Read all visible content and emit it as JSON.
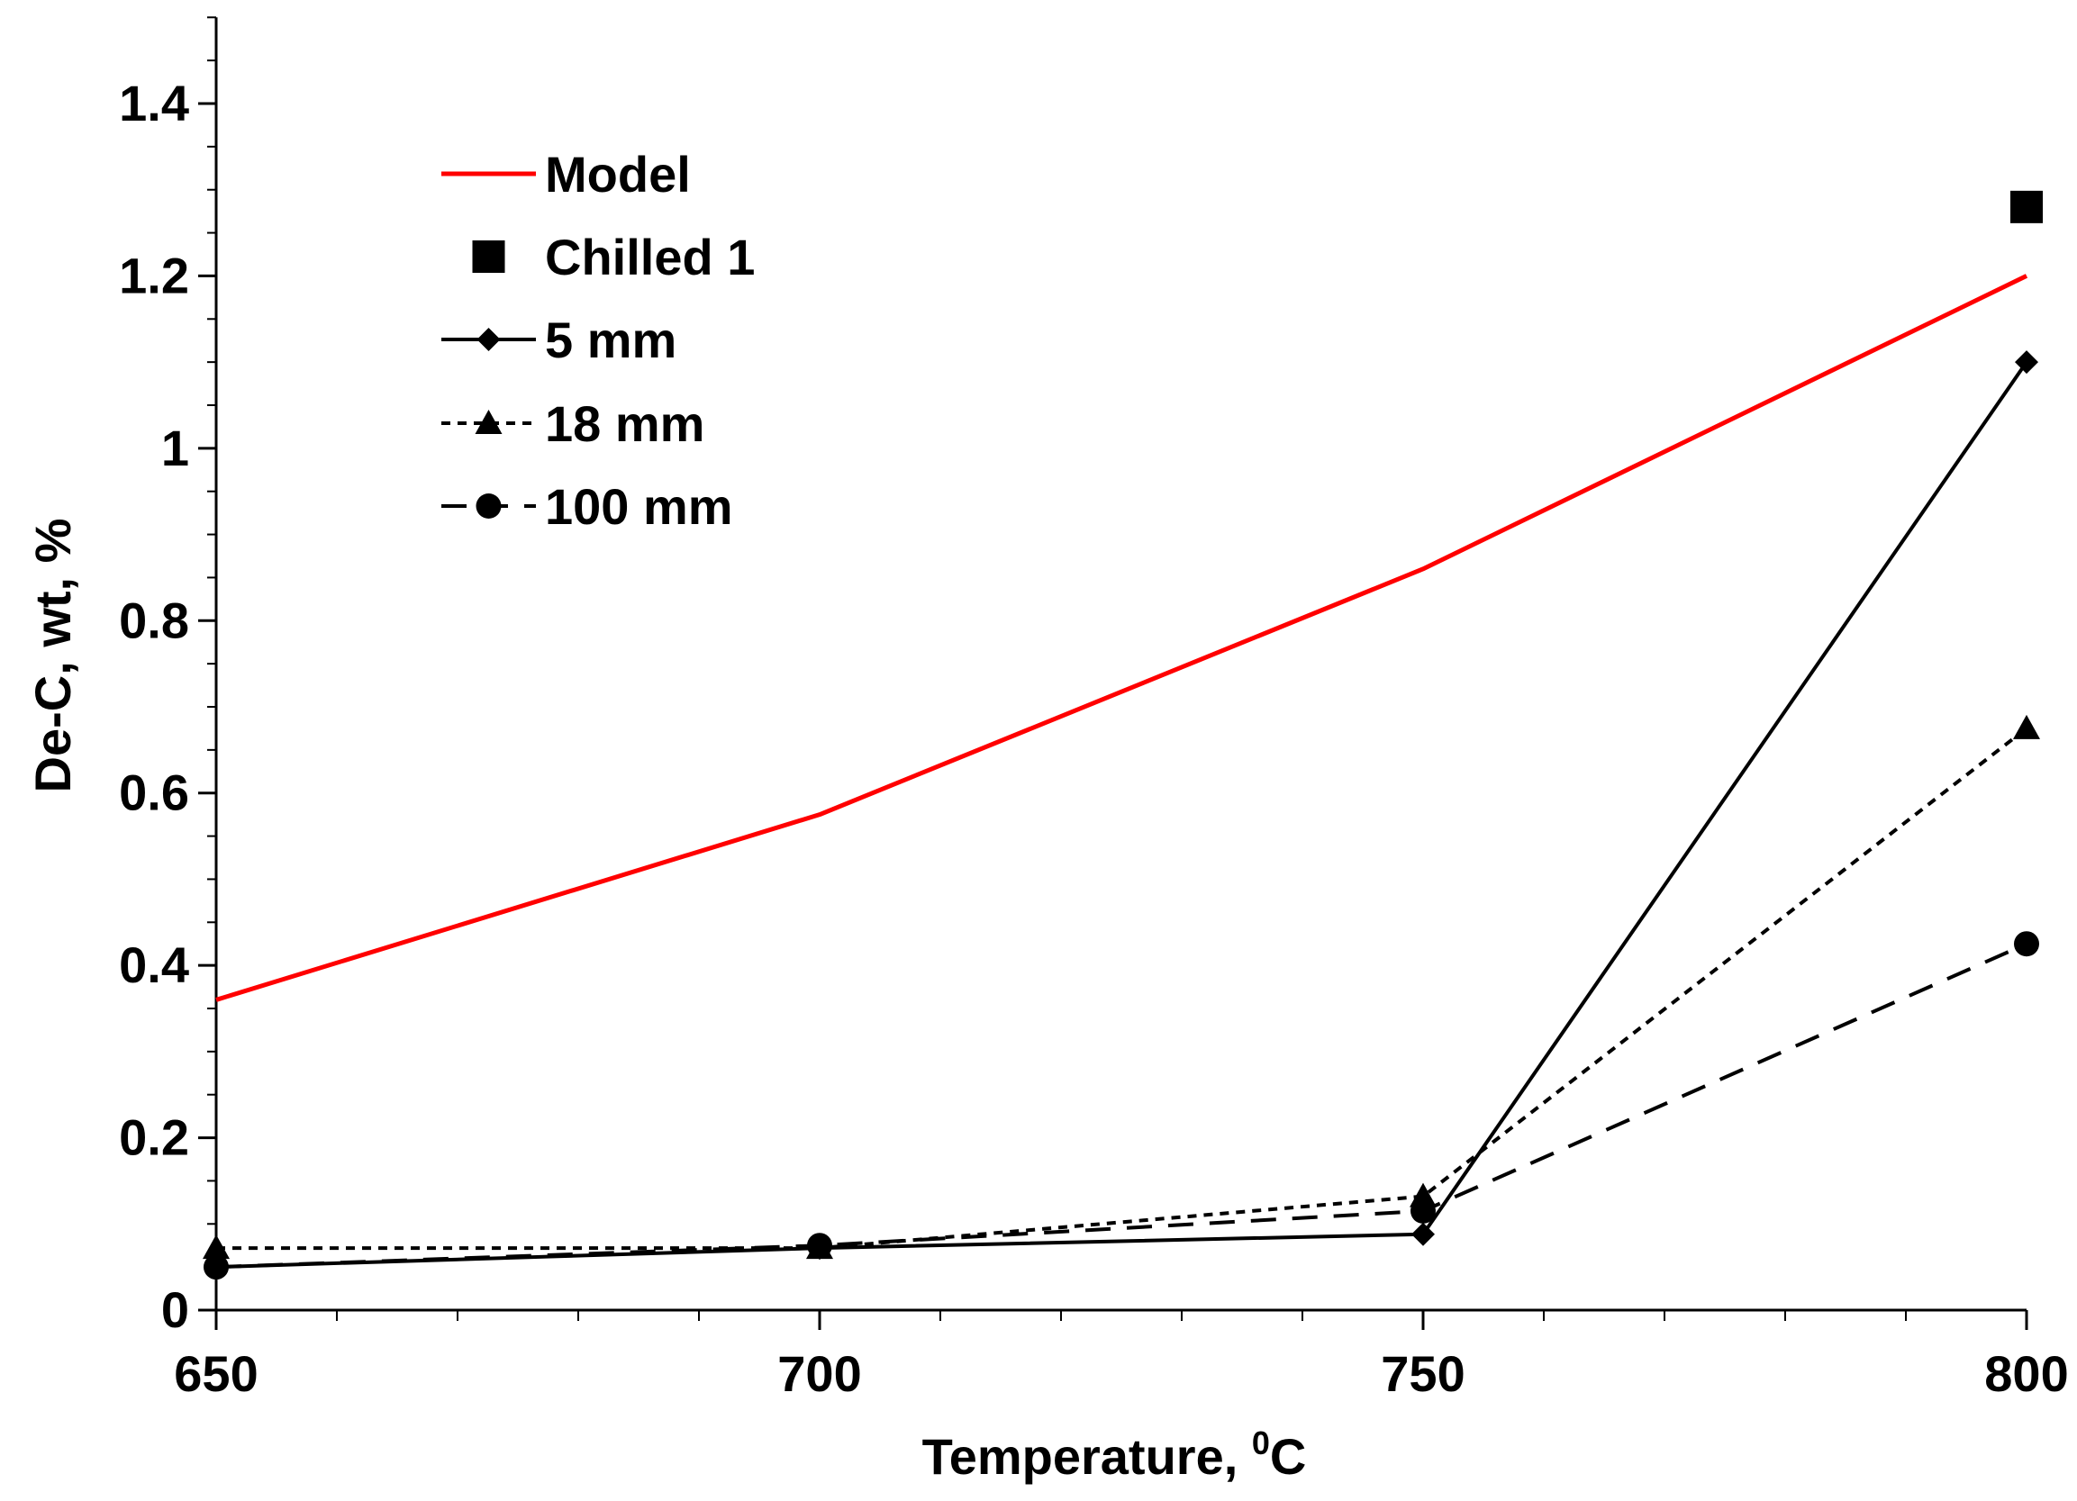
{
  "chart_data": {
    "type": "line",
    "title": "",
    "xlabel": "Temperature, ",
    "xlabel_sup": "0",
    "xlabel_unit": "C",
    "ylabel": "De-C, wt, %",
    "xlim": [
      650,
      800
    ],
    "ylim": [
      0,
      1.5
    ],
    "x_ticks": [
      650,
      700,
      750,
      800
    ],
    "x_tick_labels": [
      "650",
      "700",
      "750",
      "800"
    ],
    "x_minor_step": 10,
    "y_ticks": [
      0,
      0.2,
      0.4,
      0.6,
      0.8,
      1.0,
      1.2,
      1.4
    ],
    "y_tick_labels": [
      "0",
      "0.2",
      "0.4",
      "0.6",
      "0.8",
      "1",
      "1.2",
      "1.4"
    ],
    "y_minor_step": 0.05,
    "grid": false,
    "legend_position": "top-left",
    "series": [
      {
        "name": "Model",
        "style": "solid",
        "marker": "none",
        "color": "#ff0000",
        "x": [
          650,
          700,
          750,
          800
        ],
        "values": [
          0.36,
          0.575,
          0.86,
          1.2
        ]
      },
      {
        "name": "Chilled 1",
        "style": "none",
        "marker": "square",
        "color": "#000000",
        "x": [
          800
        ],
        "values": [
          1.28
        ]
      },
      {
        "name": "5 mm",
        "style": "solid",
        "marker": "diamond",
        "color": "#000000",
        "x": [
          650,
          700,
          750,
          800
        ],
        "values": [
          0.05,
          0.072,
          0.088,
          1.1
        ]
      },
      {
        "name": "18 mm",
        "style": "dotted",
        "marker": "triangle",
        "color": "#000000",
        "x": [
          650,
          700,
          750,
          800
        ],
        "values": [
          0.072,
          0.072,
          0.132,
          0.675
        ]
      },
      {
        "name": "100 mm",
        "style": "dashed",
        "marker": "circle",
        "color": "#000000",
        "x": [
          650,
          700,
          750,
          800
        ],
        "values": [
          0.05,
          0.075,
          0.115,
          0.425
        ]
      }
    ]
  }
}
